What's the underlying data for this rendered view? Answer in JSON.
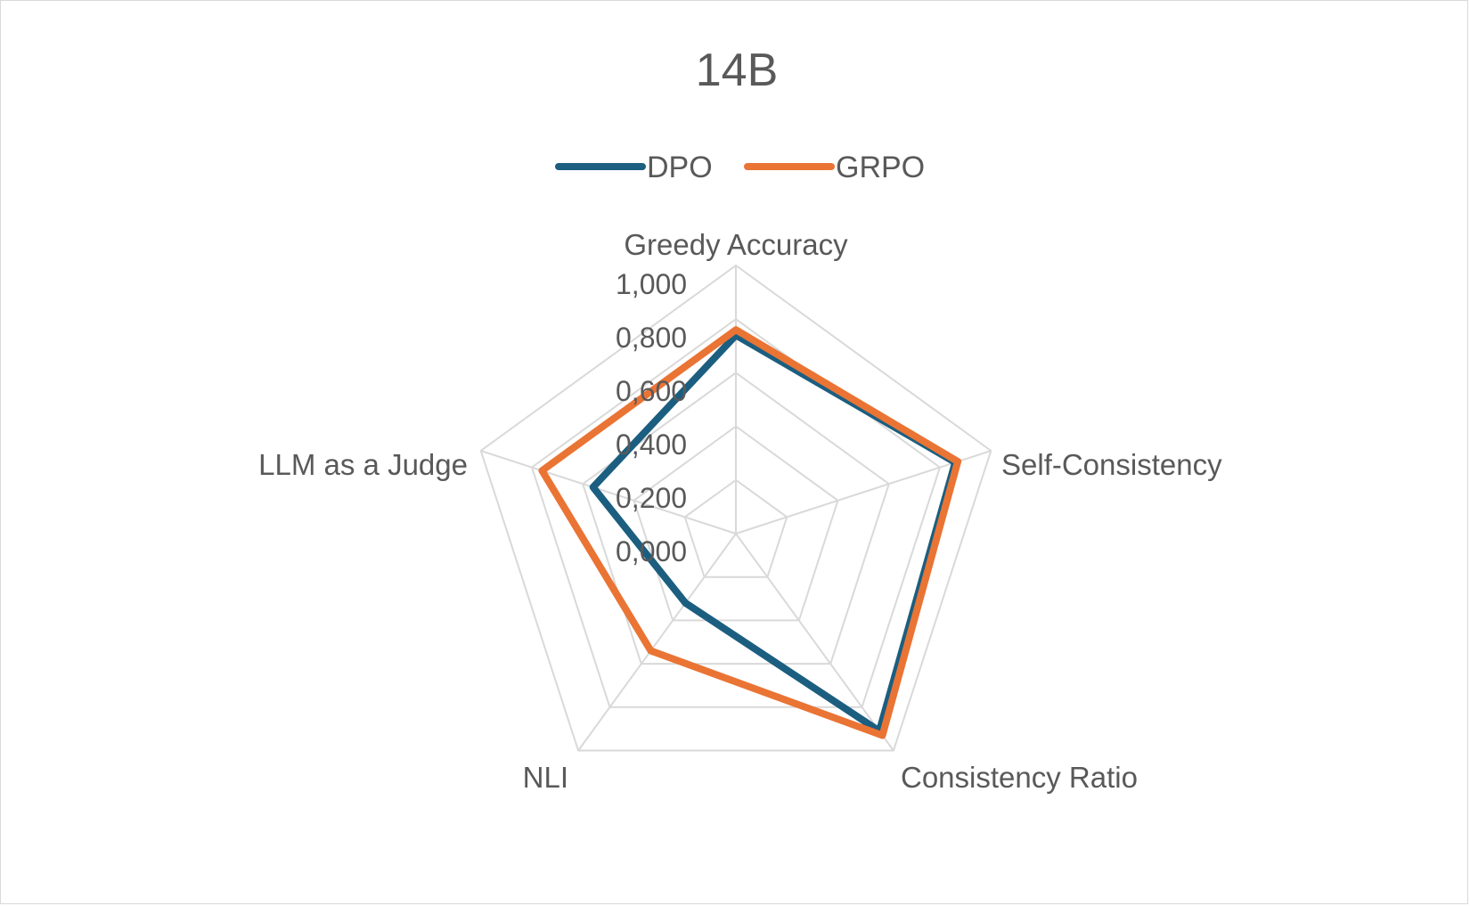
{
  "chart_data": {
    "type": "radar",
    "title": "14B",
    "axes": [
      "Greedy Accuracy",
      "Self-Consistency",
      "Consistency Ratio",
      "NLI",
      "LLM as a Judge"
    ],
    "ticks": [
      "0,000",
      "0,200",
      "0,400",
      "0,600",
      "0,800",
      "1,000"
    ],
    "range": [
      0,
      1
    ],
    "legend_position": "top",
    "series": [
      {
        "name": "DPO",
        "color": "#1b5e80",
        "values": [
          0.74,
          0.86,
          0.91,
          0.32,
          0.56
        ]
      },
      {
        "name": "GRPO",
        "color": "#ea7434",
        "values": [
          0.76,
          0.87,
          0.93,
          0.54,
          0.76
        ]
      }
    ]
  }
}
